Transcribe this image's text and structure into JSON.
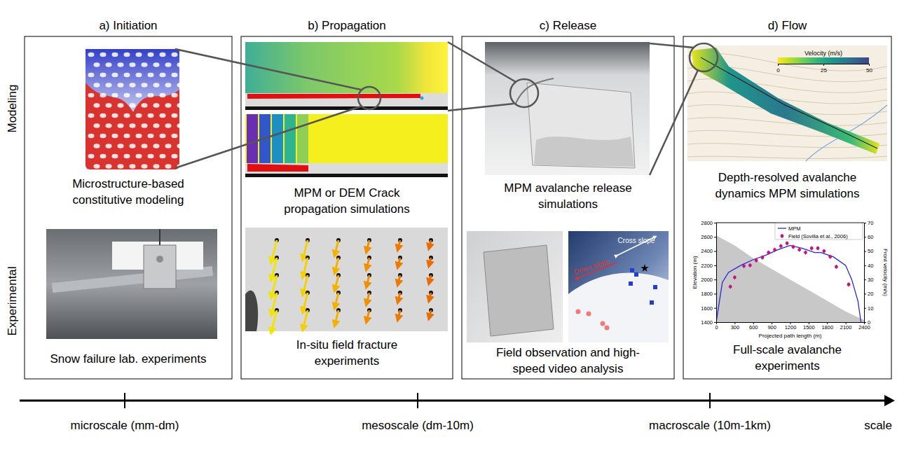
{
  "diagram": {
    "columns": [
      "a) Initiation",
      "b) Propagation",
      "c) Release",
      "d) Flow"
    ],
    "rows": [
      "Modeling",
      "Experimental"
    ],
    "modeling_captions": [
      [
        "Microstructure-based",
        "constitutive modeling"
      ],
      [
        "MPM or DEM Crack",
        "propagation simulations"
      ],
      [
        "MPM avalanche release",
        "simulations"
      ],
      [
        "Depth-resolved avalanche",
        "dynamics MPM simulations"
      ]
    ],
    "experimental_captions": [
      [
        "Snow failure lab. experiments"
      ],
      [
        "In-situ field fracture",
        "experiments"
      ],
      [
        "Field observation and high-",
        "speed video analysis"
      ],
      [
        "Full-scale avalanche",
        "experiments"
      ]
    ],
    "photo_labels": [
      "Cross slope",
      "Down slope"
    ],
    "map_colorbar": {
      "label": "Velocity (m/s)",
      "range": [
        0,
        50
      ],
      "ticks": [
        0,
        25,
        50
      ]
    },
    "scale_axis": {
      "label": "scale",
      "ticks": [
        "microscale (mm-dm)",
        "mesoscale (dm-10m)",
        "macroscale (10m-1km)"
      ]
    }
  },
  "chart_data": {
    "type": "line",
    "x_label": "Projected path length (m)",
    "y_label": "Elevation (m)",
    "y2_label": "Front velocity (m/s)",
    "xlim": [
      0,
      2400
    ],
    "xticks": [
      0,
      300,
      600,
      900,
      1200,
      1500,
      1800,
      2100,
      2400
    ],
    "ylim": [
      1400,
      2800
    ],
    "yticks": [
      1400,
      1600,
      1800,
      2000,
      2200,
      2400,
      2600,
      2800
    ],
    "y2lim": [
      0,
      70
    ],
    "y2ticks": [
      0,
      10,
      20,
      30,
      40,
      50,
      60,
      70
    ],
    "legend": "upper right",
    "profile": {
      "color": "#c8c8c8",
      "x": [
        0,
        300,
        600,
        900,
        1200,
        1500,
        1800,
        2100,
        2400
      ],
      "values": [
        2620,
        2480,
        2300,
        2150,
        2000,
        1850,
        1700,
        1550,
        1430
      ]
    },
    "series": [
      {
        "name": "MPM",
        "type": "line",
        "axis": "y2",
        "color": "#2727d6",
        "line_style": "solid",
        "x": [
          0,
          100,
          200,
          400,
          600,
          800,
          1000,
          1200,
          1400,
          1600,
          1700,
          1900,
          2100,
          2200,
          2300,
          2350
        ],
        "values": [
          0,
          28,
          35,
          40,
          44,
          47,
          51,
          54,
          52,
          49,
          49,
          46,
          40,
          30,
          15,
          0
        ]
      },
      {
        "name": "Field (Sovilla et al., 2006)",
        "type": "scatter",
        "axis": "y2",
        "color": "#c4157c",
        "marker": "circle",
        "x": [
          230,
          300,
          450,
          550,
          650,
          750,
          850,
          950,
          1050,
          1150,
          1250,
          1350,
          1450,
          1550,
          1650,
          1750,
          1850,
          1950,
          2150
        ],
        "values": [
          25,
          31.5,
          39.5,
          40,
          43.5,
          45.5,
          49,
          51,
          53.5,
          55.5,
          53,
          51,
          49,
          52,
          52,
          50,
          46,
          39,
          26.5
        ],
        "errors": [
          1.5,
          1.5,
          1.5,
          1.5,
          1.5,
          1.5,
          1.5,
          1.5,
          1.5,
          1.5,
          1.5,
          1.5,
          1.5,
          1.5,
          1.5,
          1.5,
          1.5,
          1.5,
          1.5
        ]
      }
    ]
  }
}
